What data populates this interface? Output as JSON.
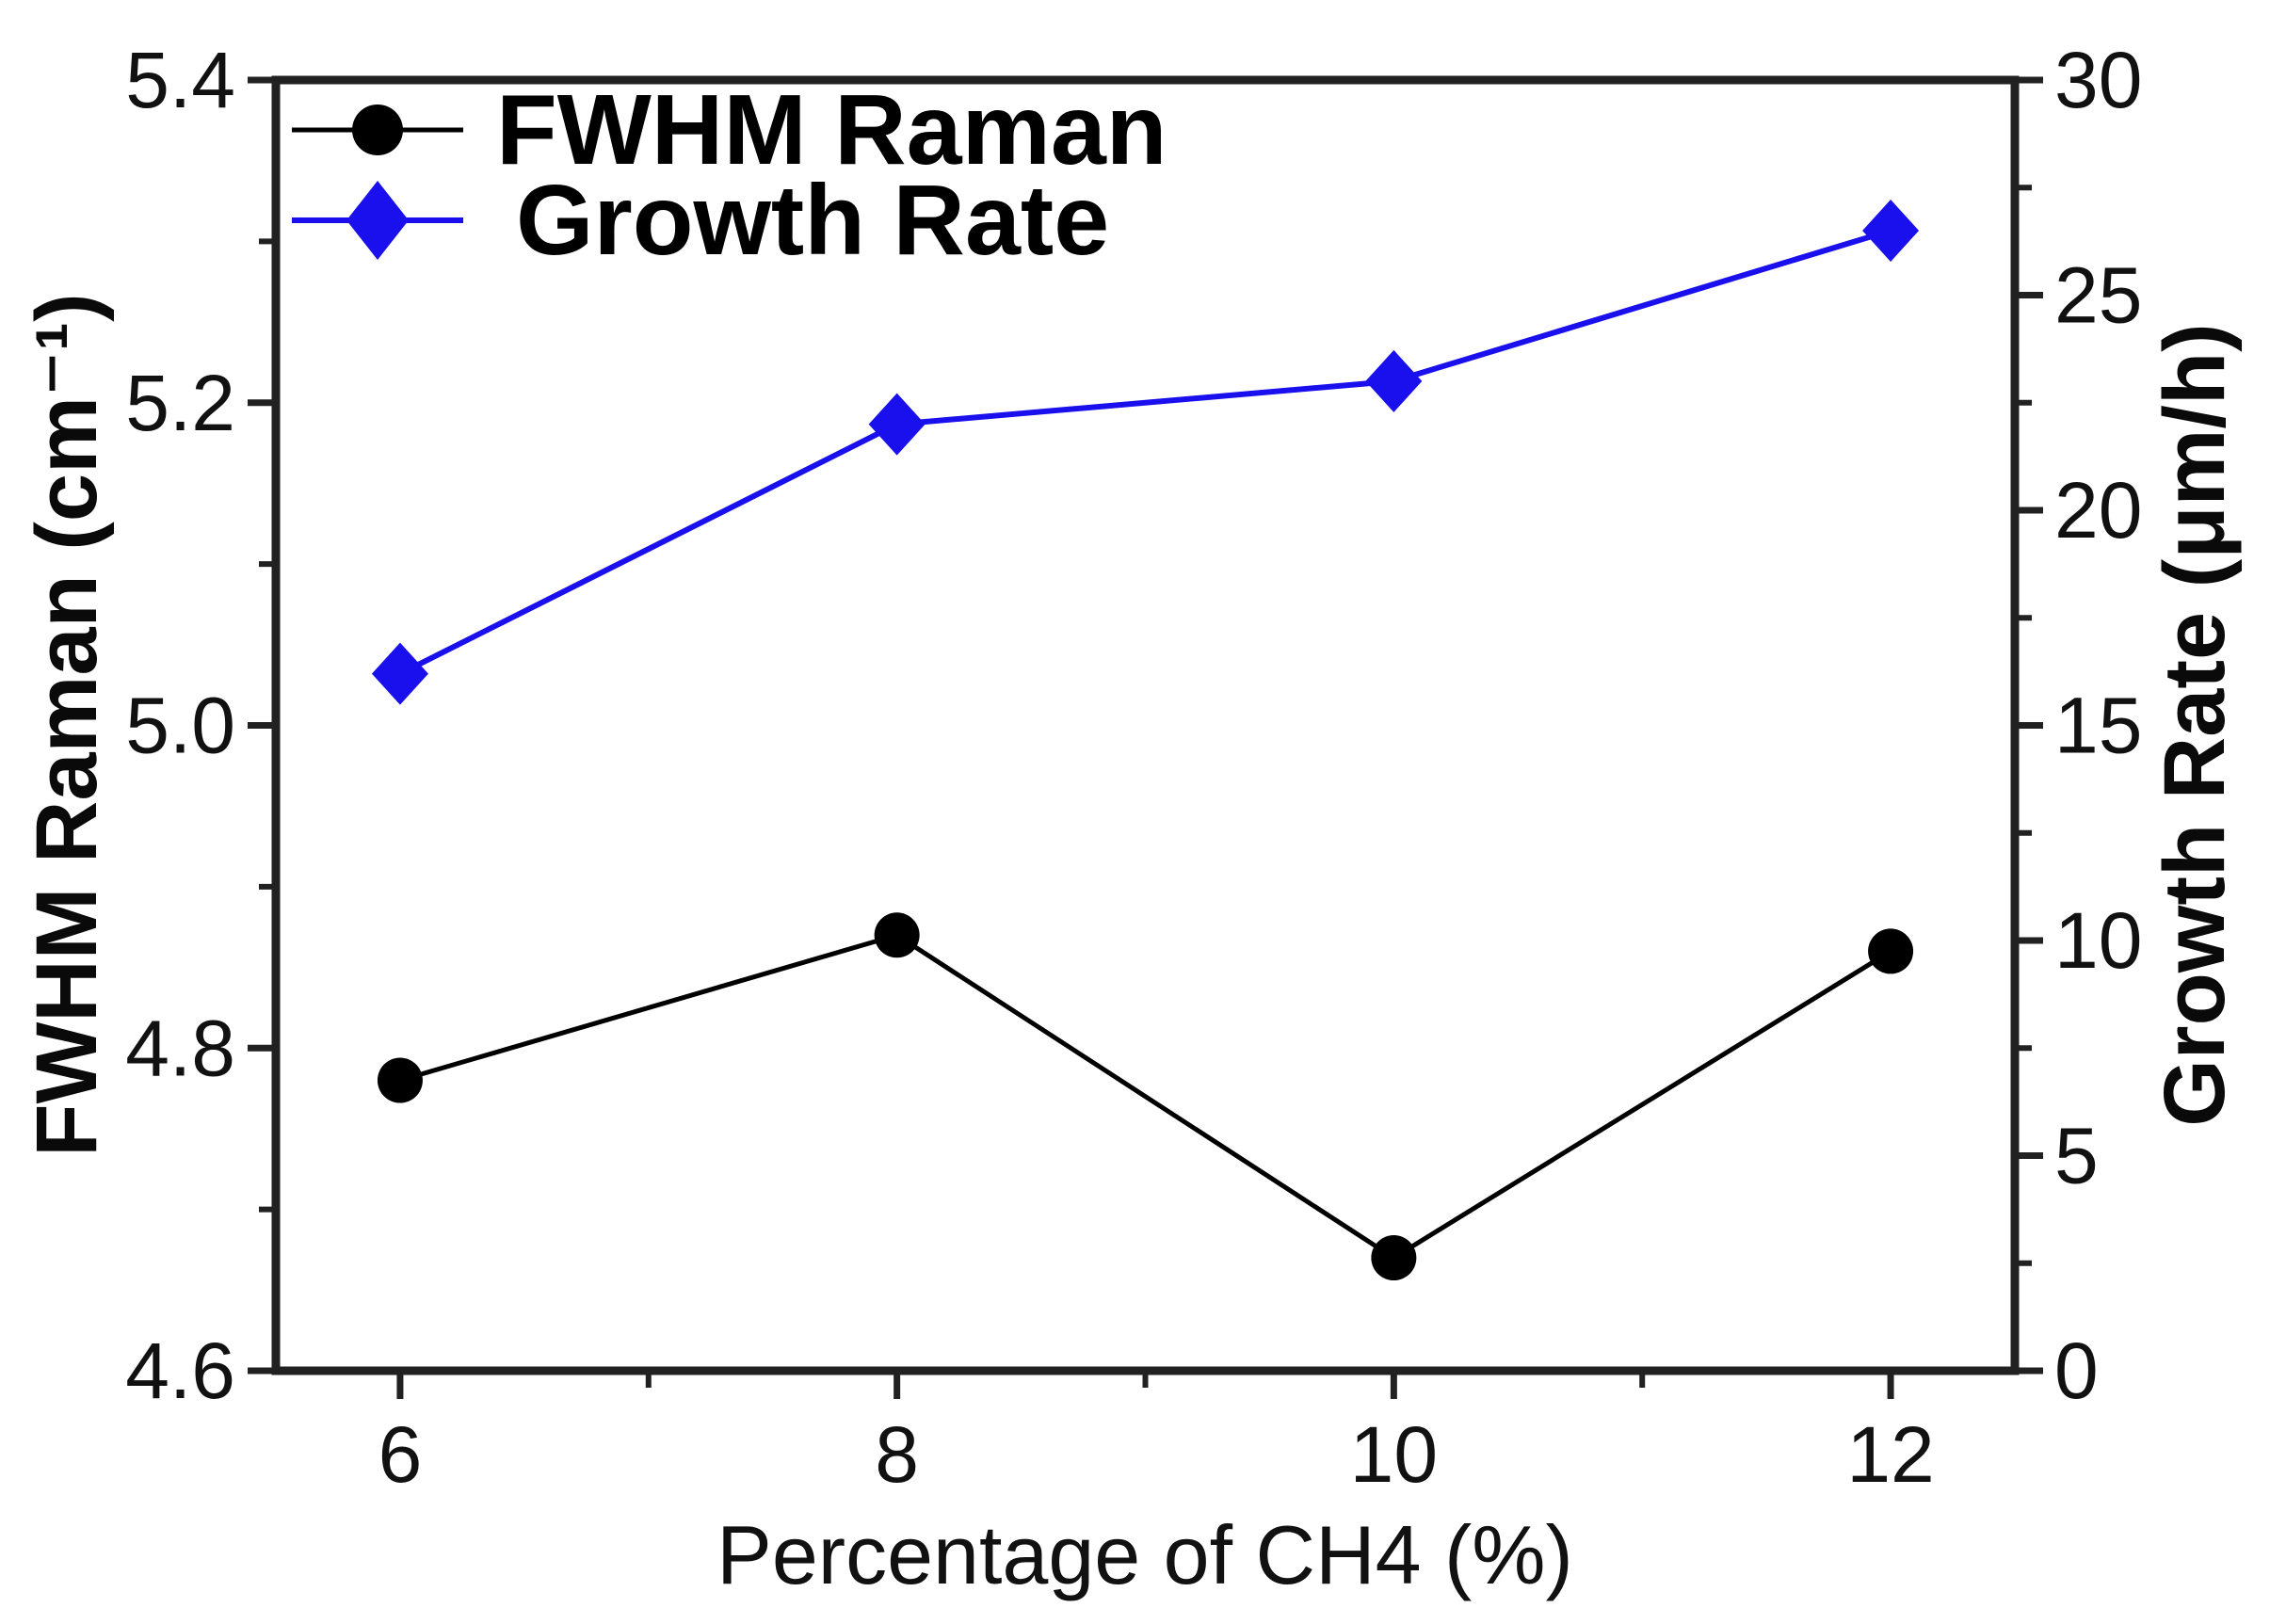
{
  "figure": {
    "background_color": "#ffffff",
    "frame_color": "#212121"
  },
  "chart_data": {
    "type": "line",
    "title": "",
    "x": [
      6,
      8,
      10,
      12
    ],
    "series": [
      {
        "name": "FWHM Raman",
        "axis": "left",
        "marker": "circle",
        "color": "#000000",
        "values": [
          4.78,
          4.87,
          4.67,
          4.86
        ]
      },
      {
        "name": "Growth Rate",
        "axis": "right",
        "marker": "diamond",
        "color": "#1a10ee",
        "values": [
          16.2,
          22.0,
          23.0,
          26.5
        ]
      }
    ],
    "x_axis": {
      "label": "Percentage of CH4 (%)",
      "range": [
        5.5,
        12.5
      ],
      "major_ticks": [
        {
          "v": 6,
          "label": "6"
        },
        {
          "v": 8,
          "label": "8"
        },
        {
          "v": 10,
          "label": "10"
        },
        {
          "v": 12,
          "label": "12"
        }
      ],
      "minor_ticks": [
        7,
        9,
        11
      ]
    },
    "left_axis": {
      "label": "FWHM Raman (cm⁻¹)",
      "range": [
        4.6,
        5.4
      ],
      "major_ticks": [
        {
          "v": 5.4,
          "label": "5.4"
        },
        {
          "v": 5.2,
          "label": "5.2"
        },
        {
          "v": 5.0,
          "label": "5.0"
        },
        {
          "v": 4.8,
          "label": "4.8"
        },
        {
          "v": 4.6,
          "label": "4.6"
        }
      ],
      "minor_ticks": [
        5.3,
        5.1,
        4.9,
        4.7
      ]
    },
    "right_axis": {
      "label": "Growth Rate (μm/h)",
      "range": [
        0,
        30
      ],
      "major_ticks": [
        {
          "v": 30,
          "label": "30"
        },
        {
          "v": 25,
          "label": "25"
        },
        {
          "v": 20,
          "label": "20"
        },
        {
          "v": 15,
          "label": "15"
        },
        {
          "v": 10,
          "label": "10"
        },
        {
          "v": 5,
          "label": "5"
        },
        {
          "v": 0,
          "label": "0"
        }
      ],
      "minor_ticks": [
        27.5,
        22.5,
        17.5,
        12.5,
        7.5,
        2.5
      ]
    },
    "legend": {
      "position": "top-left",
      "entries": [
        {
          "label": "FWHM Raman",
          "marker": "circle",
          "color": "#000000"
        },
        {
          "label": "Growth Rate",
          "marker": "diamond",
          "color": "#1a10ee"
        }
      ]
    },
    "grid": false
  }
}
